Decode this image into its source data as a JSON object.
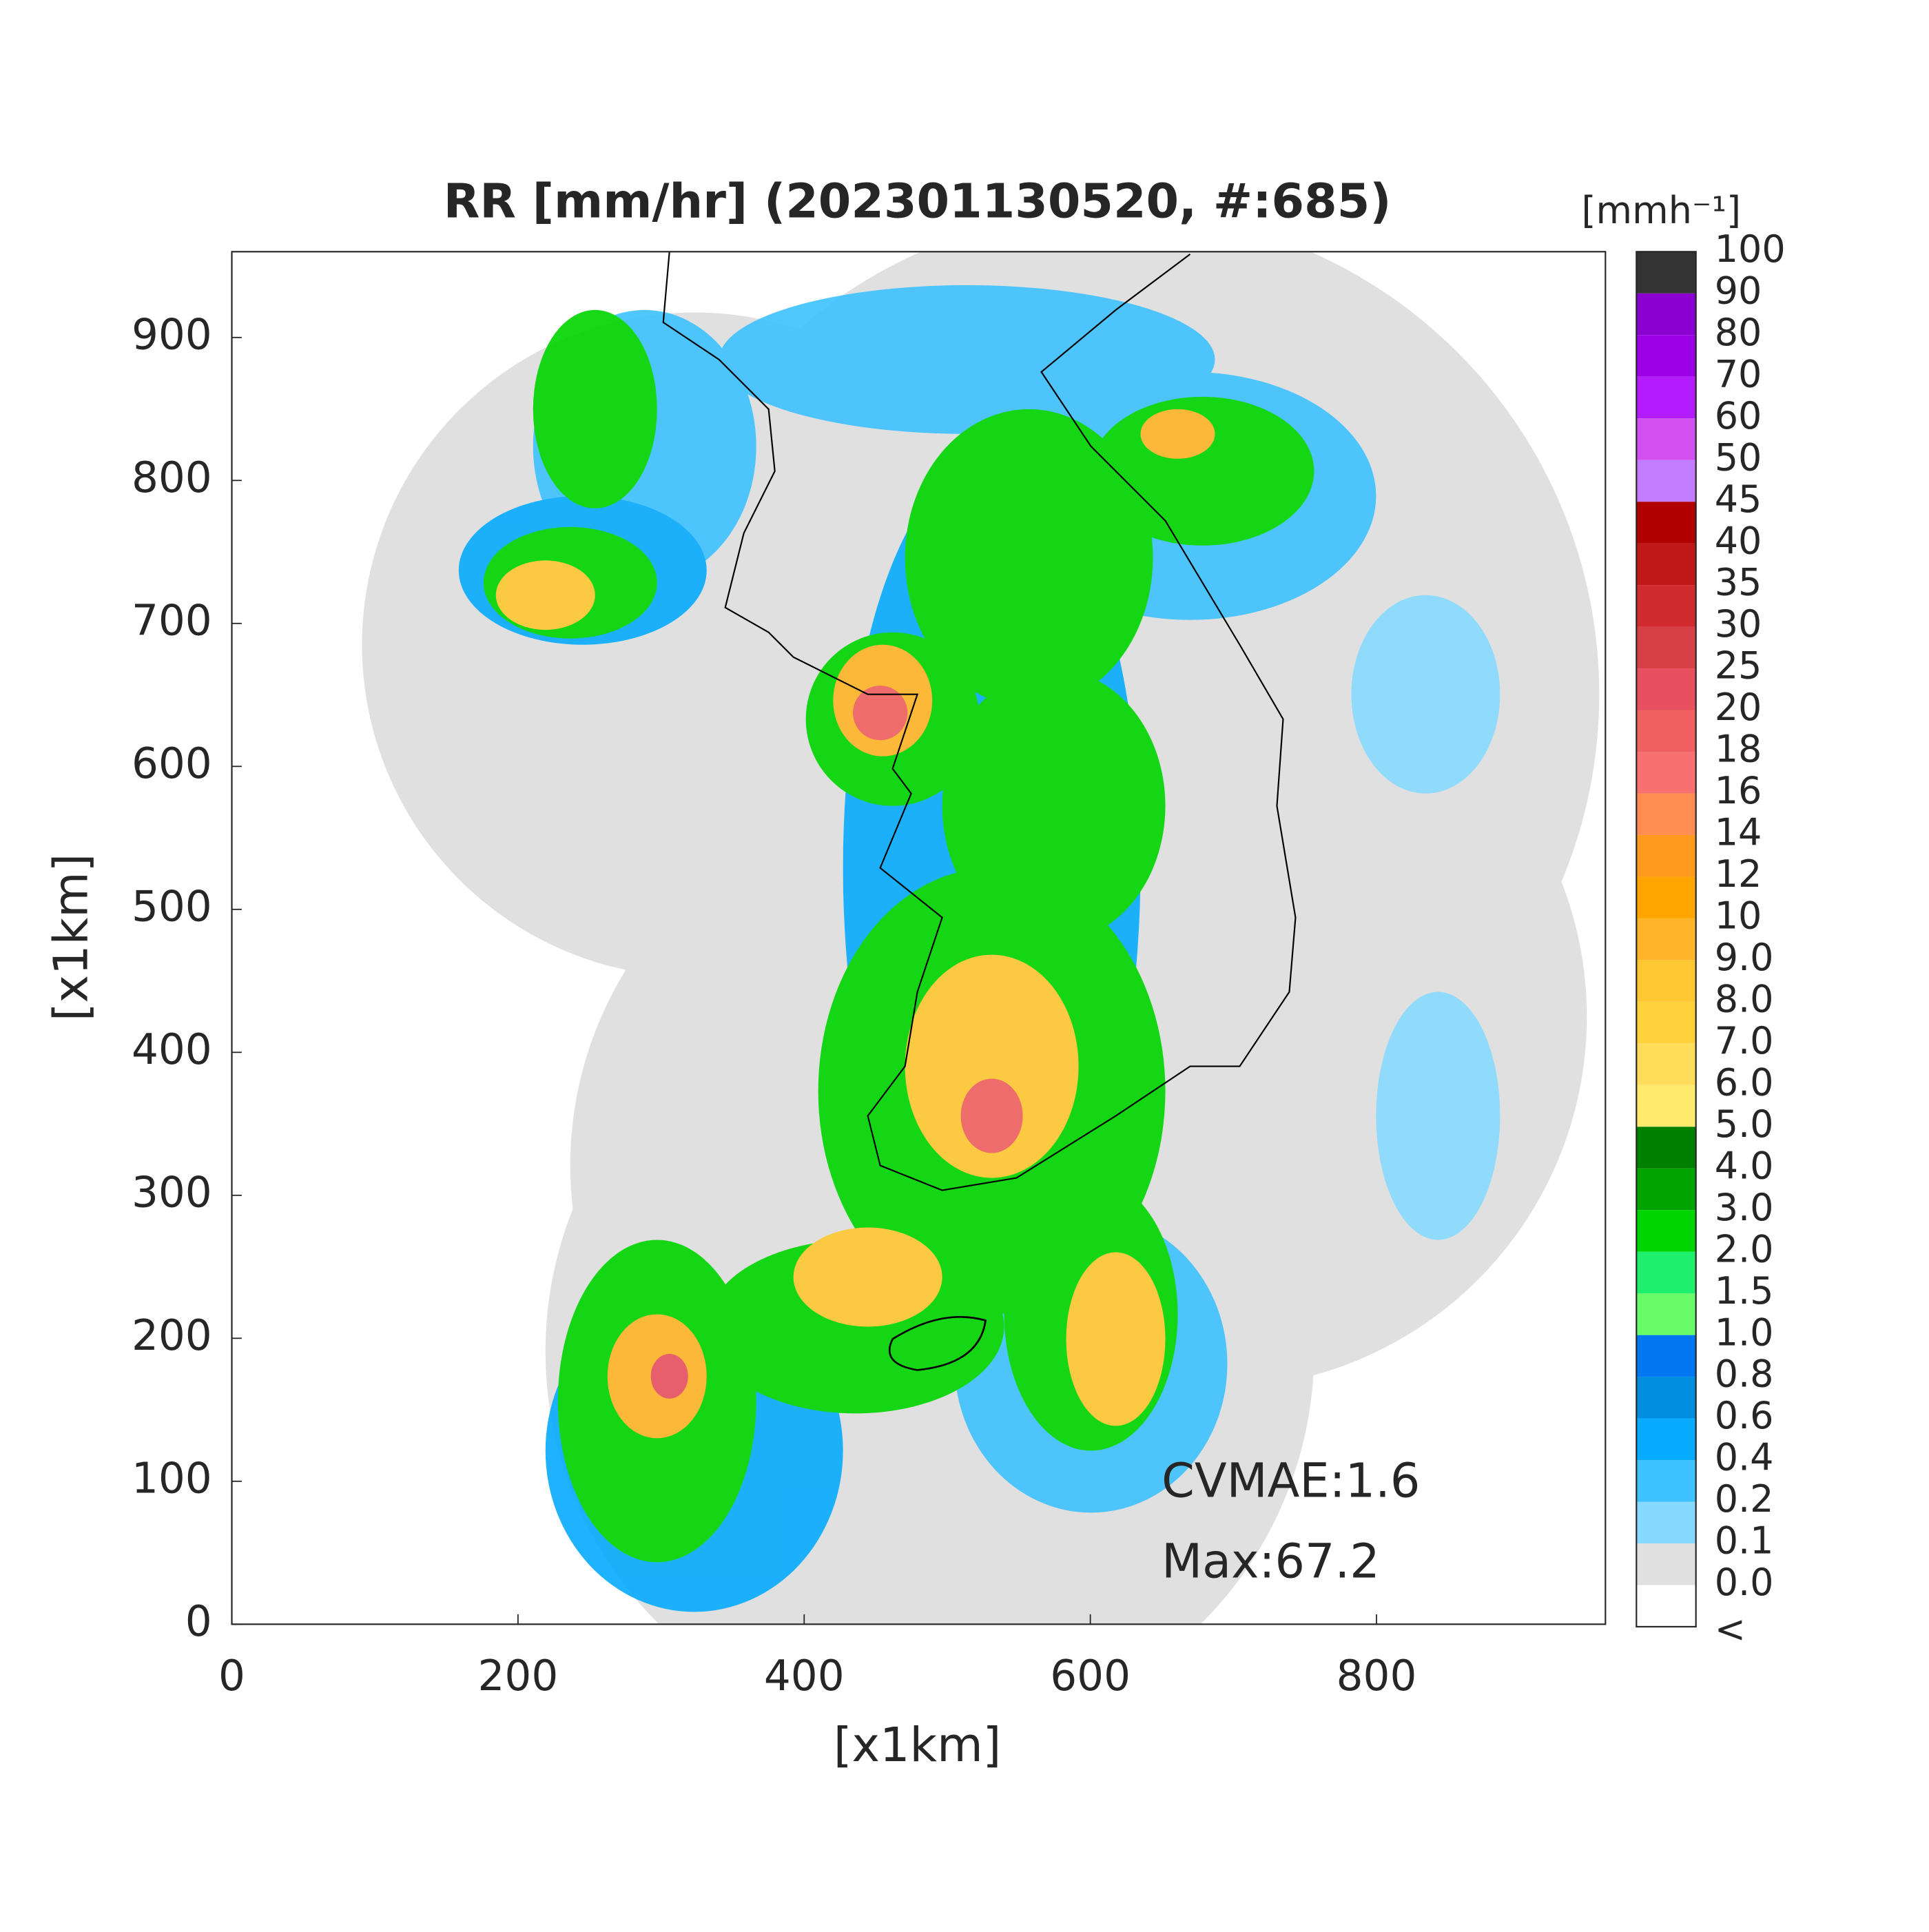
{
  "chart_data": {
    "type": "map",
    "title": "RR [mm/hr] (202301130520, #:685)",
    "xlabel": "[x1km]",
    "ylabel": "[x1km]",
    "xlim": [
      0,
      960
    ],
    "ylim": [
      0,
      960
    ],
    "xticks": [
      0,
      200,
      400,
      600,
      800
    ],
    "yticks": [
      0,
      100,
      200,
      300,
      400,
      500,
      600,
      700,
      800,
      900
    ],
    "annotations": [
      "CVMAE:1.6",
      "Max:67.2"
    ],
    "colorbar": {
      "unit": "[mmh⁻¹]",
      "under_label": "<",
      "ticks": [
        {
          "value": 0,
          "label": "0.0"
        },
        0.1,
        0.2,
        0.4,
        0.6,
        0.8,
        {
          "value": 1,
          "label": "1.0"
        },
        1.5,
        {
          "value": 2,
          "label": "2.0"
        },
        {
          "value": 3,
          "label": "3.0"
        },
        {
          "value": 4,
          "label": "4.0"
        },
        {
          "value": 5,
          "label": "5.0"
        },
        {
          "value": 6,
          "label": "6.0"
        },
        {
          "value": 7,
          "label": "7.0"
        },
        {
          "value": 8,
          "label": "8.0"
        },
        {
          "value": 9,
          "label": "9.0"
        },
        10,
        12,
        14,
        16,
        18,
        20,
        25,
        30,
        35,
        40,
        45,
        50,
        60,
        70,
        80,
        90,
        100
      ],
      "colors": [
        "#ffffff",
        "#e0e0e0",
        "#87d9ff",
        "#3ec1ff",
        "#07abff",
        "#008dde",
        "#0077f0",
        "#69fc69",
        "#1ef06e",
        "#00d500",
        "#00a400",
        "#008000",
        "#ffea6e",
        "#ffdc5a",
        "#ffd23c",
        "#ffc832",
        "#ffb428",
        "#ffa500",
        "#ff9a1e",
        "#ff8c50",
        "#f87070",
        "#f06060",
        "#e85060",
        "#d84048",
        "#d02c30",
        "#c01818",
        "#b00000",
        "#c27cff",
        "#d350f0",
        "#b31cff",
        "#9b00e6",
        "#8a00d0",
        "#333333"
      ]
    }
  }
}
